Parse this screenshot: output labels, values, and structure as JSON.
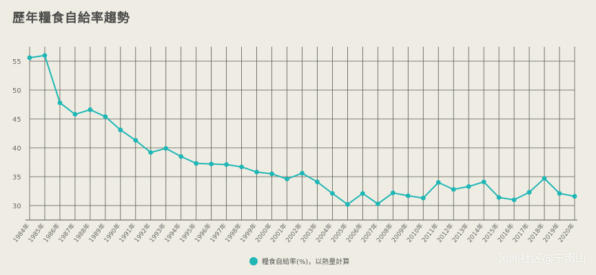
{
  "title": "歷年糧食自給率趨勢",
  "watermark": "风闻社区@宁南山",
  "colors": {
    "line": "#1fb6b6",
    "grid": "#57574f",
    "axis_text": "#666666",
    "background": "#efede3"
  },
  "chart_data": {
    "type": "line",
    "title": "歷年糧食自給率趨勢",
    "xlabel": "",
    "ylabel": "",
    "ylim": [
      27.5,
      57.5
    ],
    "yticks": [
      30,
      35,
      40,
      45,
      50,
      55
    ],
    "grid": "vertical and horizontal",
    "legend_position": "bottom-center",
    "categories": [
      "1984年",
      "1985年",
      "1986年",
      "1987年",
      "1988年",
      "1989年",
      "1990年",
      "1991年",
      "1992年",
      "1993年",
      "1994年",
      "1995年",
      "1996年",
      "1997年",
      "1998年",
      "1999年",
      "2000年",
      "2001年",
      "2002年",
      "2003年",
      "2004年",
      "2005年",
      "2006年",
      "2007年",
      "2008年",
      "2009年",
      "2010年",
      "2011年",
      "2012年",
      "2013年",
      "2014年",
      "2015年",
      "2016年",
      "2017年",
      "2018年",
      "2019年",
      "2020年"
    ],
    "series": [
      {
        "name": "糧食自給率(%)，以熱量計算",
        "values": [
          55.6,
          56.0,
          47.8,
          45.8,
          46.6,
          45.4,
          43.1,
          41.3,
          39.2,
          39.9,
          38.5,
          37.3,
          37.2,
          37.1,
          36.7,
          35.8,
          35.5,
          34.6,
          35.6,
          34.1,
          32.1,
          30.2,
          32.1,
          30.3,
          32.2,
          31.7,
          31.3,
          34.0,
          32.8,
          33.3,
          34.1,
          31.4,
          31.0,
          32.3,
          34.7,
          32.1,
          31.6
        ]
      }
    ]
  }
}
